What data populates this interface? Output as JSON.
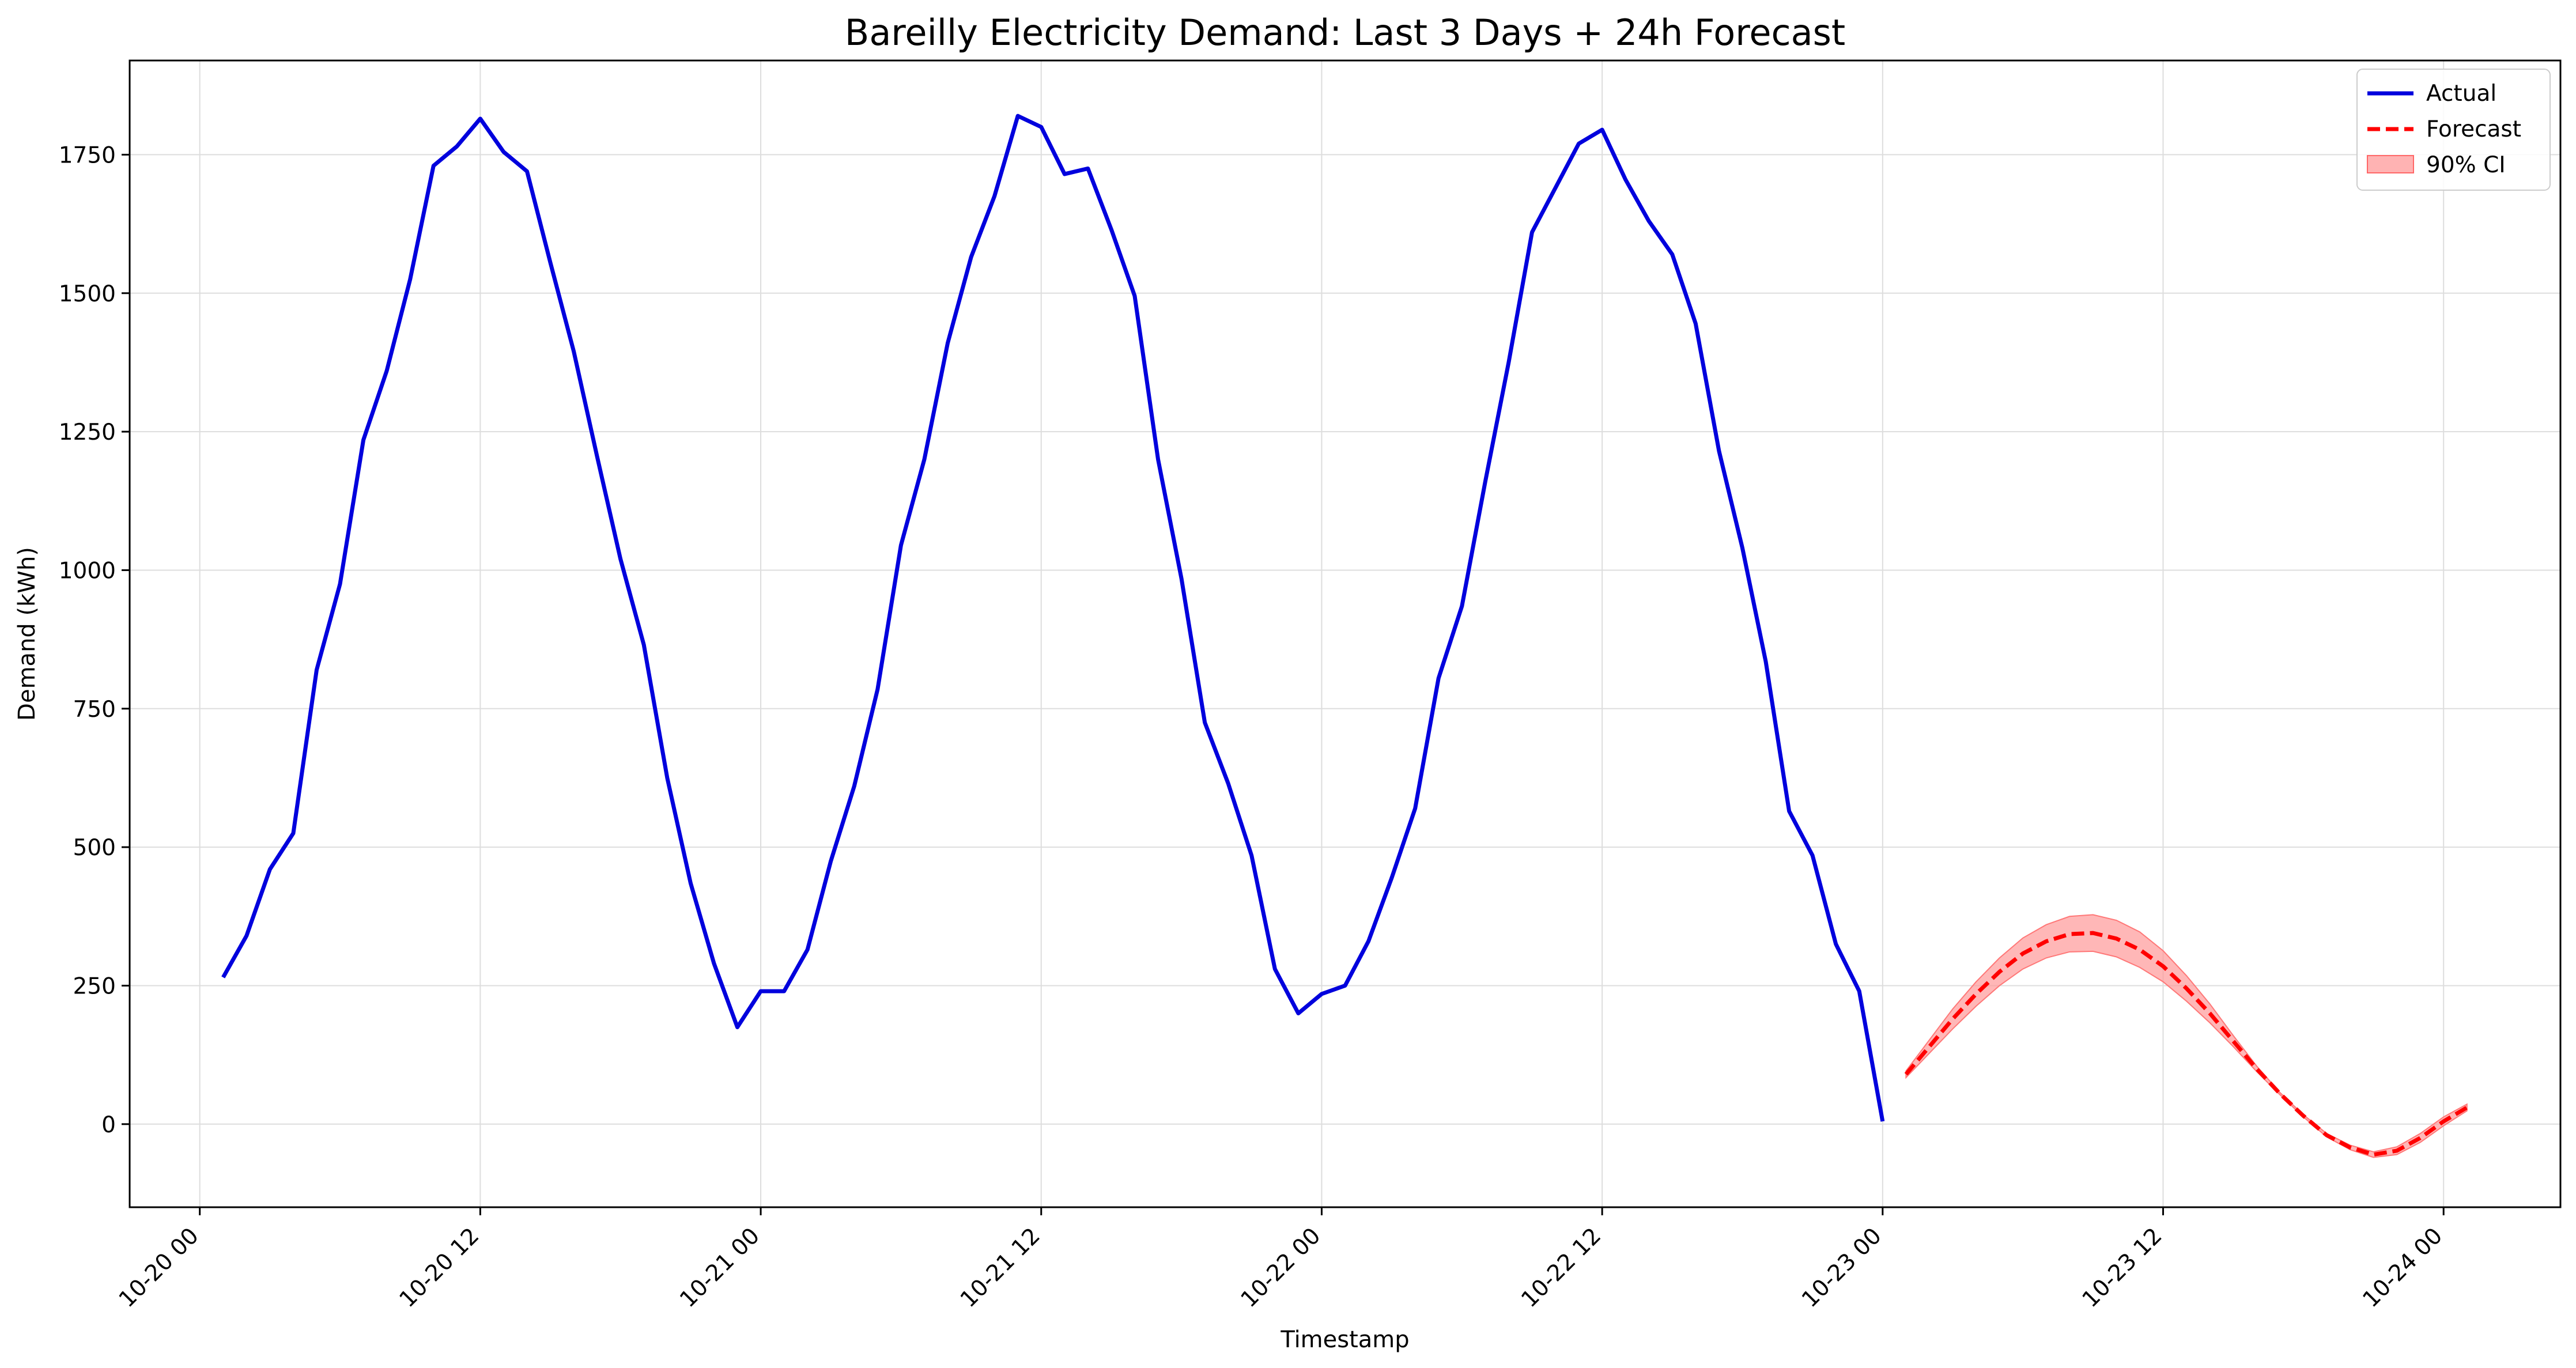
{
  "chart_data": {
    "type": "line",
    "title": "Bareilly Electricity Demand: Last 3 Days + 24h Forecast",
    "xlabel": "Timestamp",
    "ylabel": "Demand (kWh)",
    "xlim": [
      "2023-10-19 21:00",
      "2023-10-24 05:00"
    ],
    "ylim": [
      -150,
      1920
    ],
    "x_ticks": [
      "10-20 00",
      "10-20 12",
      "10-21 00",
      "10-21 12",
      "10-22 00",
      "10-22 12",
      "10-23 00",
      "10-23 12",
      "10-24 00"
    ],
    "y_ticks": [
      0,
      250,
      500,
      750,
      1000,
      1250,
      1500,
      1750
    ],
    "grid": true,
    "legend": {
      "position": "top-right",
      "entries": [
        "Actual",
        "Forecast",
        "90% CI"
      ]
    },
    "colors": {
      "actual": "#0000dd",
      "forecast": "#ff0000",
      "ci": "#ff9999"
    },
    "series": [
      {
        "name": "Actual",
        "style": "solid",
        "start": "2023-10-20 01:00",
        "step_hours": 1,
        "values": [
          265,
          340,
          460,
          525,
          820,
          975,
          1235,
          1360,
          1525,
          1730,
          1765,
          1815,
          1755,
          1720,
          1555,
          1395,
          1205,
          1020,
          865,
          625,
          435,
          290,
          175,
          240,
          240,
          315,
          475,
          610,
          785,
          1045,
          1200,
          1410,
          1565,
          1675,
          1820,
          1800,
          1715,
          1725,
          1615,
          1495,
          1200,
          985,
          725,
          615,
          485,
          280,
          200,
          235,
          250,
          330,
          445,
          570,
          805,
          935,
          1160,
          1375,
          1610,
          1690,
          1770,
          1795,
          1705,
          1630,
          1570,
          1445,
          1215,
          1040,
          835,
          565,
          485,
          325,
          240,
          5
        ]
      },
      {
        "name": "Forecast",
        "style": "dashed",
        "start": "2023-10-23 01:00",
        "step_hours": 1,
        "values": [
          90,
          140,
          190,
          235,
          275,
          308,
          330,
          343,
          345,
          335,
          315,
          285,
          245,
          200,
          150,
          100,
          55,
          15,
          -20,
          -42,
          -55,
          -48,
          -25,
          5,
          30
        ]
      },
      {
        "name": "90% CI",
        "type": "band",
        "start": "2023-10-23 01:00",
        "step_hours": 1,
        "lower": [
          84,
          128,
          172,
          213,
          250,
          280,
          300,
          311,
          312,
          302,
          283,
          257,
          222,
          183,
          140,
          95,
          53,
          13,
          -23,
          -46,
          -60,
          -55,
          -33,
          -3,
          24
        ],
        "upper": [
          96,
          152,
          208,
          257,
          300,
          336,
          360,
          375,
          378,
          368,
          347,
          313,
          268,
          217,
          160,
          105,
          57,
          17,
          -17,
          -38,
          -50,
          -41,
          -17,
          13,
          36
        ]
      }
    ]
  }
}
